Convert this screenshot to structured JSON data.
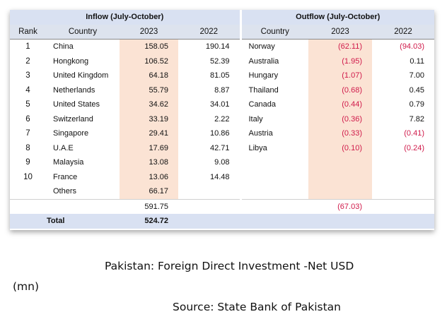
{
  "headers": {
    "inflow": "Inflow (July-October)",
    "outflow": "Outflow (July-October)",
    "rank": "Rank",
    "country": "Country",
    "y2023": "2023",
    "y2022": "2022"
  },
  "rows": [
    {
      "rank": "1",
      "in_country": "China",
      "in_2023": "158.05",
      "in_2022": "190.14",
      "out_country": "Norway",
      "out_2023": "(62.11)",
      "out_2022": "(94.03)"
    },
    {
      "rank": "2",
      "in_country": "Hongkong",
      "in_2023": "106.52",
      "in_2022": "52.39",
      "out_country": "Australia",
      "out_2023": "(1.95)",
      "out_2022": "0.11"
    },
    {
      "rank": "3",
      "in_country": "United Kingdom",
      "in_2023": "64.18",
      "in_2022": "81.05",
      "out_country": "Hungary",
      "out_2023": "(1.07)",
      "out_2022": "7.00"
    },
    {
      "rank": "4",
      "in_country": "Netherlands",
      "in_2023": "55.79",
      "in_2022": "8.87",
      "out_country": "Thailand",
      "out_2023": "(0.68)",
      "out_2022": "0.45"
    },
    {
      "rank": "5",
      "in_country": "United States",
      "in_2023": "34.62",
      "in_2022": "34.01",
      "out_country": "Canada",
      "out_2023": "(0.44)",
      "out_2022": "0.79"
    },
    {
      "rank": "6",
      "in_country": "Switzerland",
      "in_2023": "33.19",
      "in_2022": "2.22",
      "out_country": "Italy",
      "out_2023": "(0.36)",
      "out_2022": "7.82"
    },
    {
      "rank": "7",
      "in_country": "Singapore",
      "in_2023": "29.41",
      "in_2022": "10.86",
      "out_country": "Austria",
      "out_2023": "(0.33)",
      "out_2022": "(0.41)"
    },
    {
      "rank": "8",
      "in_country": "U.A.E",
      "in_2023": "17.69",
      "in_2022": "42.71",
      "out_country": "Libya",
      "out_2023": "(0.10)",
      "out_2022": "(0.24)"
    },
    {
      "rank": "9",
      "in_country": "Malaysia",
      "in_2023": "13.08",
      "in_2022": "9.08",
      "out_country": "",
      "out_2023": "",
      "out_2022": ""
    },
    {
      "rank": "10",
      "in_country": "France",
      "in_2023": "13.06",
      "in_2022": "14.48",
      "out_country": "",
      "out_2023": "",
      "out_2022": ""
    },
    {
      "rank": "",
      "in_country": "Others",
      "in_2023": "66.17",
      "in_2022": "",
      "out_country": "",
      "out_2023": "",
      "out_2022": ""
    }
  ],
  "subtotal": {
    "in_2023": "591.75",
    "out_2023": "(67.03)"
  },
  "total": {
    "label": "Total",
    "value": "524.72"
  },
  "caption": {
    "line1": "Pakistan:  Foreign  Direct  Investment  -Net  USD",
    "line2": "(mn)",
    "source": "Source: State Bank of Pakistan"
  },
  "colors": {
    "header_bg": "#d9e1f2",
    "highlight": "#fbe3d4",
    "negative": "#d01a4a"
  }
}
